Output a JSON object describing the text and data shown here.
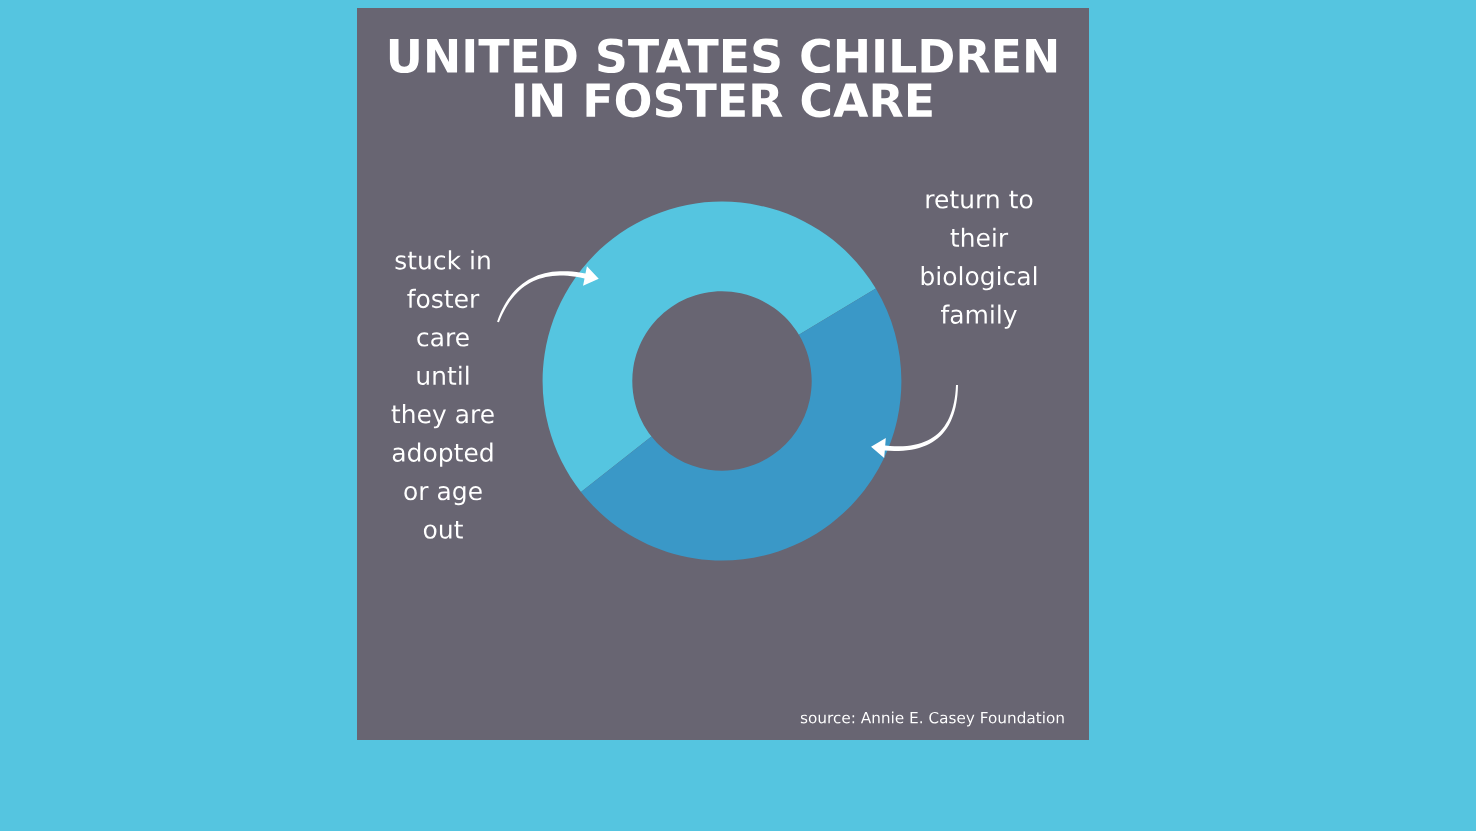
{
  "chart_data": {
    "type": "donut",
    "title": "UNITED STATES CHILDREN IN FOSTER CARE",
    "categories": [
      "stuck in foster care until they are adopted or age out",
      "return to their biological family"
    ],
    "values": [
      52,
      48
    ],
    "colors": [
      "#55c5e0",
      "#3a98c7"
    ],
    "annotations": [
      "source: Annie E. Casey Foundation"
    ]
  }
}
